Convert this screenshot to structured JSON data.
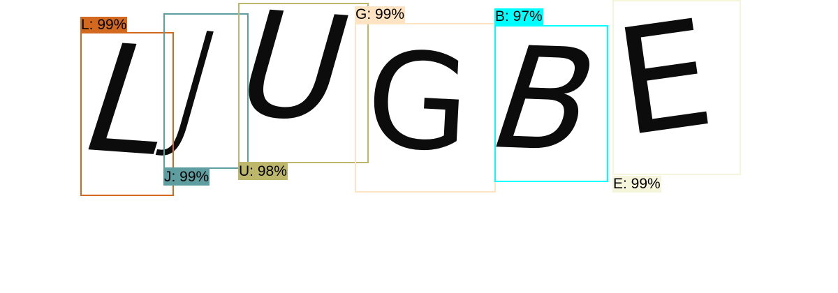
{
  "glyphs": [
    {
      "char": "L"
    },
    {
      "char": "J"
    },
    {
      "char": "U"
    },
    {
      "char": "G"
    },
    {
      "char": "B"
    },
    {
      "char": "E"
    }
  ],
  "detections": [
    {
      "label": "L: 99%",
      "color": "#d2691e"
    },
    {
      "label": "J: 99%",
      "color": "#5f9ea0"
    },
    {
      "label": "U: 98%",
      "color": "#bdb76b"
    },
    {
      "label": "G: 99%",
      "color": "#ffe4c4"
    },
    {
      "label": "B: 97%",
      "color": "#00ffff"
    },
    {
      "label": "E: 99%",
      "color": "#f5f5dc"
    }
  ]
}
